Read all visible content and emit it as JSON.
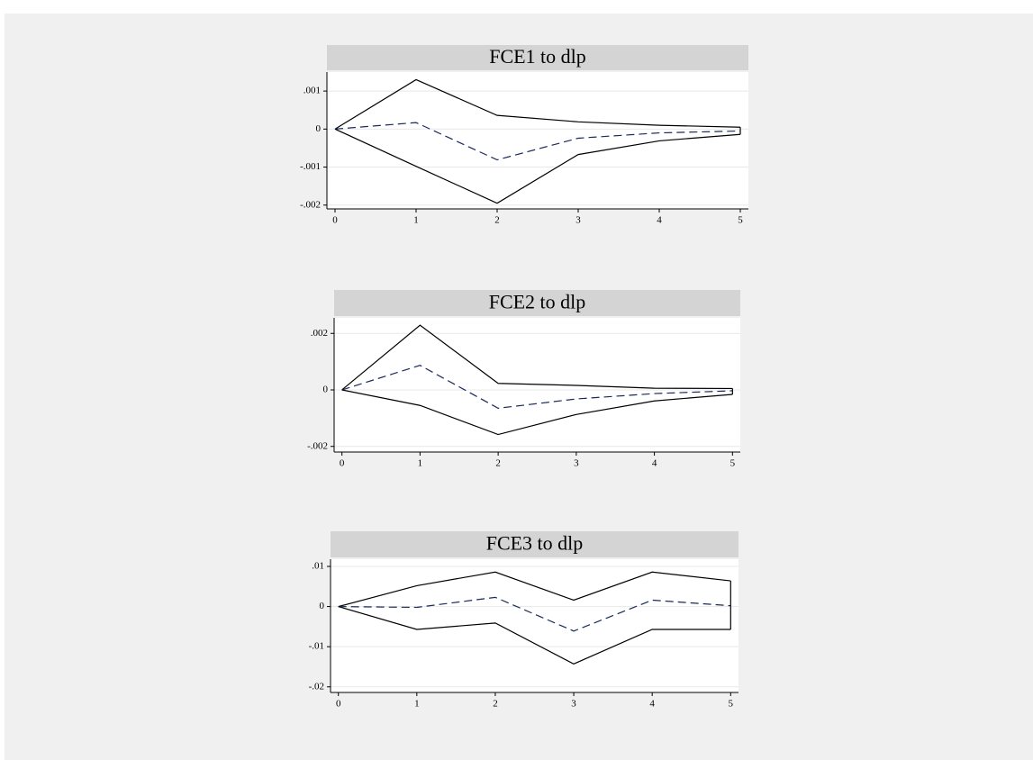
{
  "chart_data": [
    {
      "type": "line",
      "title": "FCE1 to dlp",
      "x": [
        0,
        1,
        2,
        3,
        4,
        5
      ],
      "xlim": [
        -0.1,
        5.1
      ],
      "xticks": [
        0,
        1,
        2,
        3,
        4,
        5
      ],
      "ylim": [
        -0.0021,
        0.0015
      ],
      "yticks": [
        {
          "value": 0.001,
          "label": ".001"
        },
        0,
        {
          "value": -0.001,
          "label": "-.001"
        },
        {
          "value": -0.002,
          "label": "-.002"
        }
      ],
      "grid": true,
      "series": [
        {
          "color": "#000000",
          "values": [
            0,
            0.0013,
            0.00036,
            0.00019,
            0.0001,
            5e-05
          ]
        },
        {
          "color": "#1a2a5a",
          "dash": true,
          "values": [
            0,
            0.00017,
            -0.00081,
            -0.00024,
            -0.0001,
            -5e-05
          ]
        },
        {
          "color": "#000000",
          "values": [
            0,
            -0.00098,
            -0.00195,
            -0.00067,
            -0.00031,
            -0.00014
          ]
        }
      ]
    },
    {
      "type": "line",
      "title": "FCE2 to dlp",
      "x": [
        0,
        1,
        2,
        3,
        4,
        5
      ],
      "xlim": [
        -0.1,
        5.1
      ],
      "xticks": [
        0,
        1,
        2,
        3,
        4,
        5
      ],
      "ylim": [
        -0.0022,
        0.00255
      ],
      "yticks": [
        {
          "value": 0.002,
          "label": ".002"
        },
        0,
        {
          "value": -0.002,
          "label": "-.002"
        }
      ],
      "grid": true,
      "series": [
        {
          "color": "#000000",
          "values": [
            0,
            0.00229,
            0.00023,
            0.00016,
            6e-05,
            5e-05
          ]
        },
        {
          "color": "#1a2a5a",
          "dash": true,
          "values": [
            0,
            0.00087,
            -0.00065,
            -0.00032,
            -0.00013,
            -3e-05
          ]
        },
        {
          "color": "#000000",
          "values": [
            0,
            -0.00055,
            -0.00158,
            -0.00087,
            -0.00039,
            -0.00016
          ]
        }
      ]
    },
    {
      "type": "line",
      "title": "FCE3 to dlp",
      "x": [
        0,
        1,
        2,
        3,
        4,
        5
      ],
      "xlim": [
        -0.1,
        5.1
      ],
      "xticks": [
        0,
        1,
        2,
        3,
        4,
        5
      ],
      "ylim": [
        -0.0214,
        0.0118
      ],
      "yticks": [
        {
          "value": 0.01,
          "label": ".01"
        },
        0,
        {
          "value": -0.01,
          "label": "-.01"
        },
        {
          "value": -0.02,
          "label": "-.02"
        }
      ],
      "grid": true,
      "series": [
        {
          "color": "#000000",
          "values": [
            0,
            0.0052,
            0.0086,
            0.0016,
            0.0086,
            0.0064
          ]
        },
        {
          "color": "#1a2a5a",
          "dash": true,
          "values": [
            0,
            -0.0002,
            0.0023,
            -0.0061,
            0.0016,
            0.0002
          ]
        },
        {
          "color": "#000000",
          "values": [
            0,
            -0.0057,
            -0.0041,
            -0.0143,
            -0.0057,
            -0.0057
          ]
        }
      ]
    }
  ]
}
